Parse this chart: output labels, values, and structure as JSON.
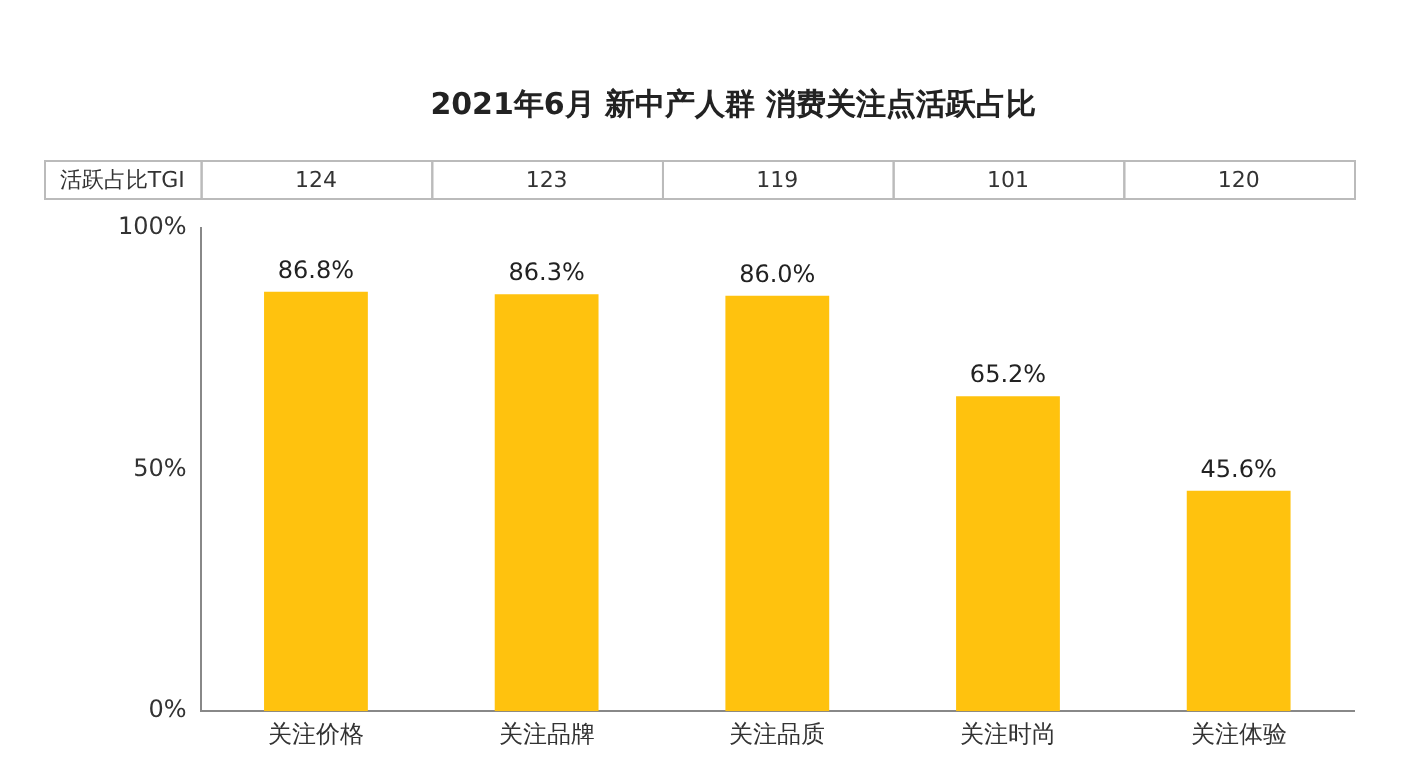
{
  "chart_data": {
    "type": "bar",
    "title": "2021年6月 新中产人群 消费关注点活跃占比",
    "categories": [
      "关注价格",
      "关注品牌",
      "关注品质",
      "关注时尚",
      "关注体验"
    ],
    "values": [
      86.8,
      86.3,
      86.0,
      65.2,
      45.6
    ],
    "value_labels": [
      "86.8%",
      "86.3%",
      "86.0%",
      "65.2%",
      "45.6%"
    ],
    "color": "#ffc20e",
    "ylim": [
      0,
      100
    ],
    "yticks": [
      {
        "value": 0,
        "label": "0%"
      },
      {
        "value": 50,
        "label": "50%"
      },
      {
        "value": 100,
        "label": "100%"
      }
    ],
    "annotations": [
      "活跃占比TGI",
      "124",
      "123",
      "119",
      "101",
      "120"
    ],
    "grid": false,
    "legend": false
  }
}
